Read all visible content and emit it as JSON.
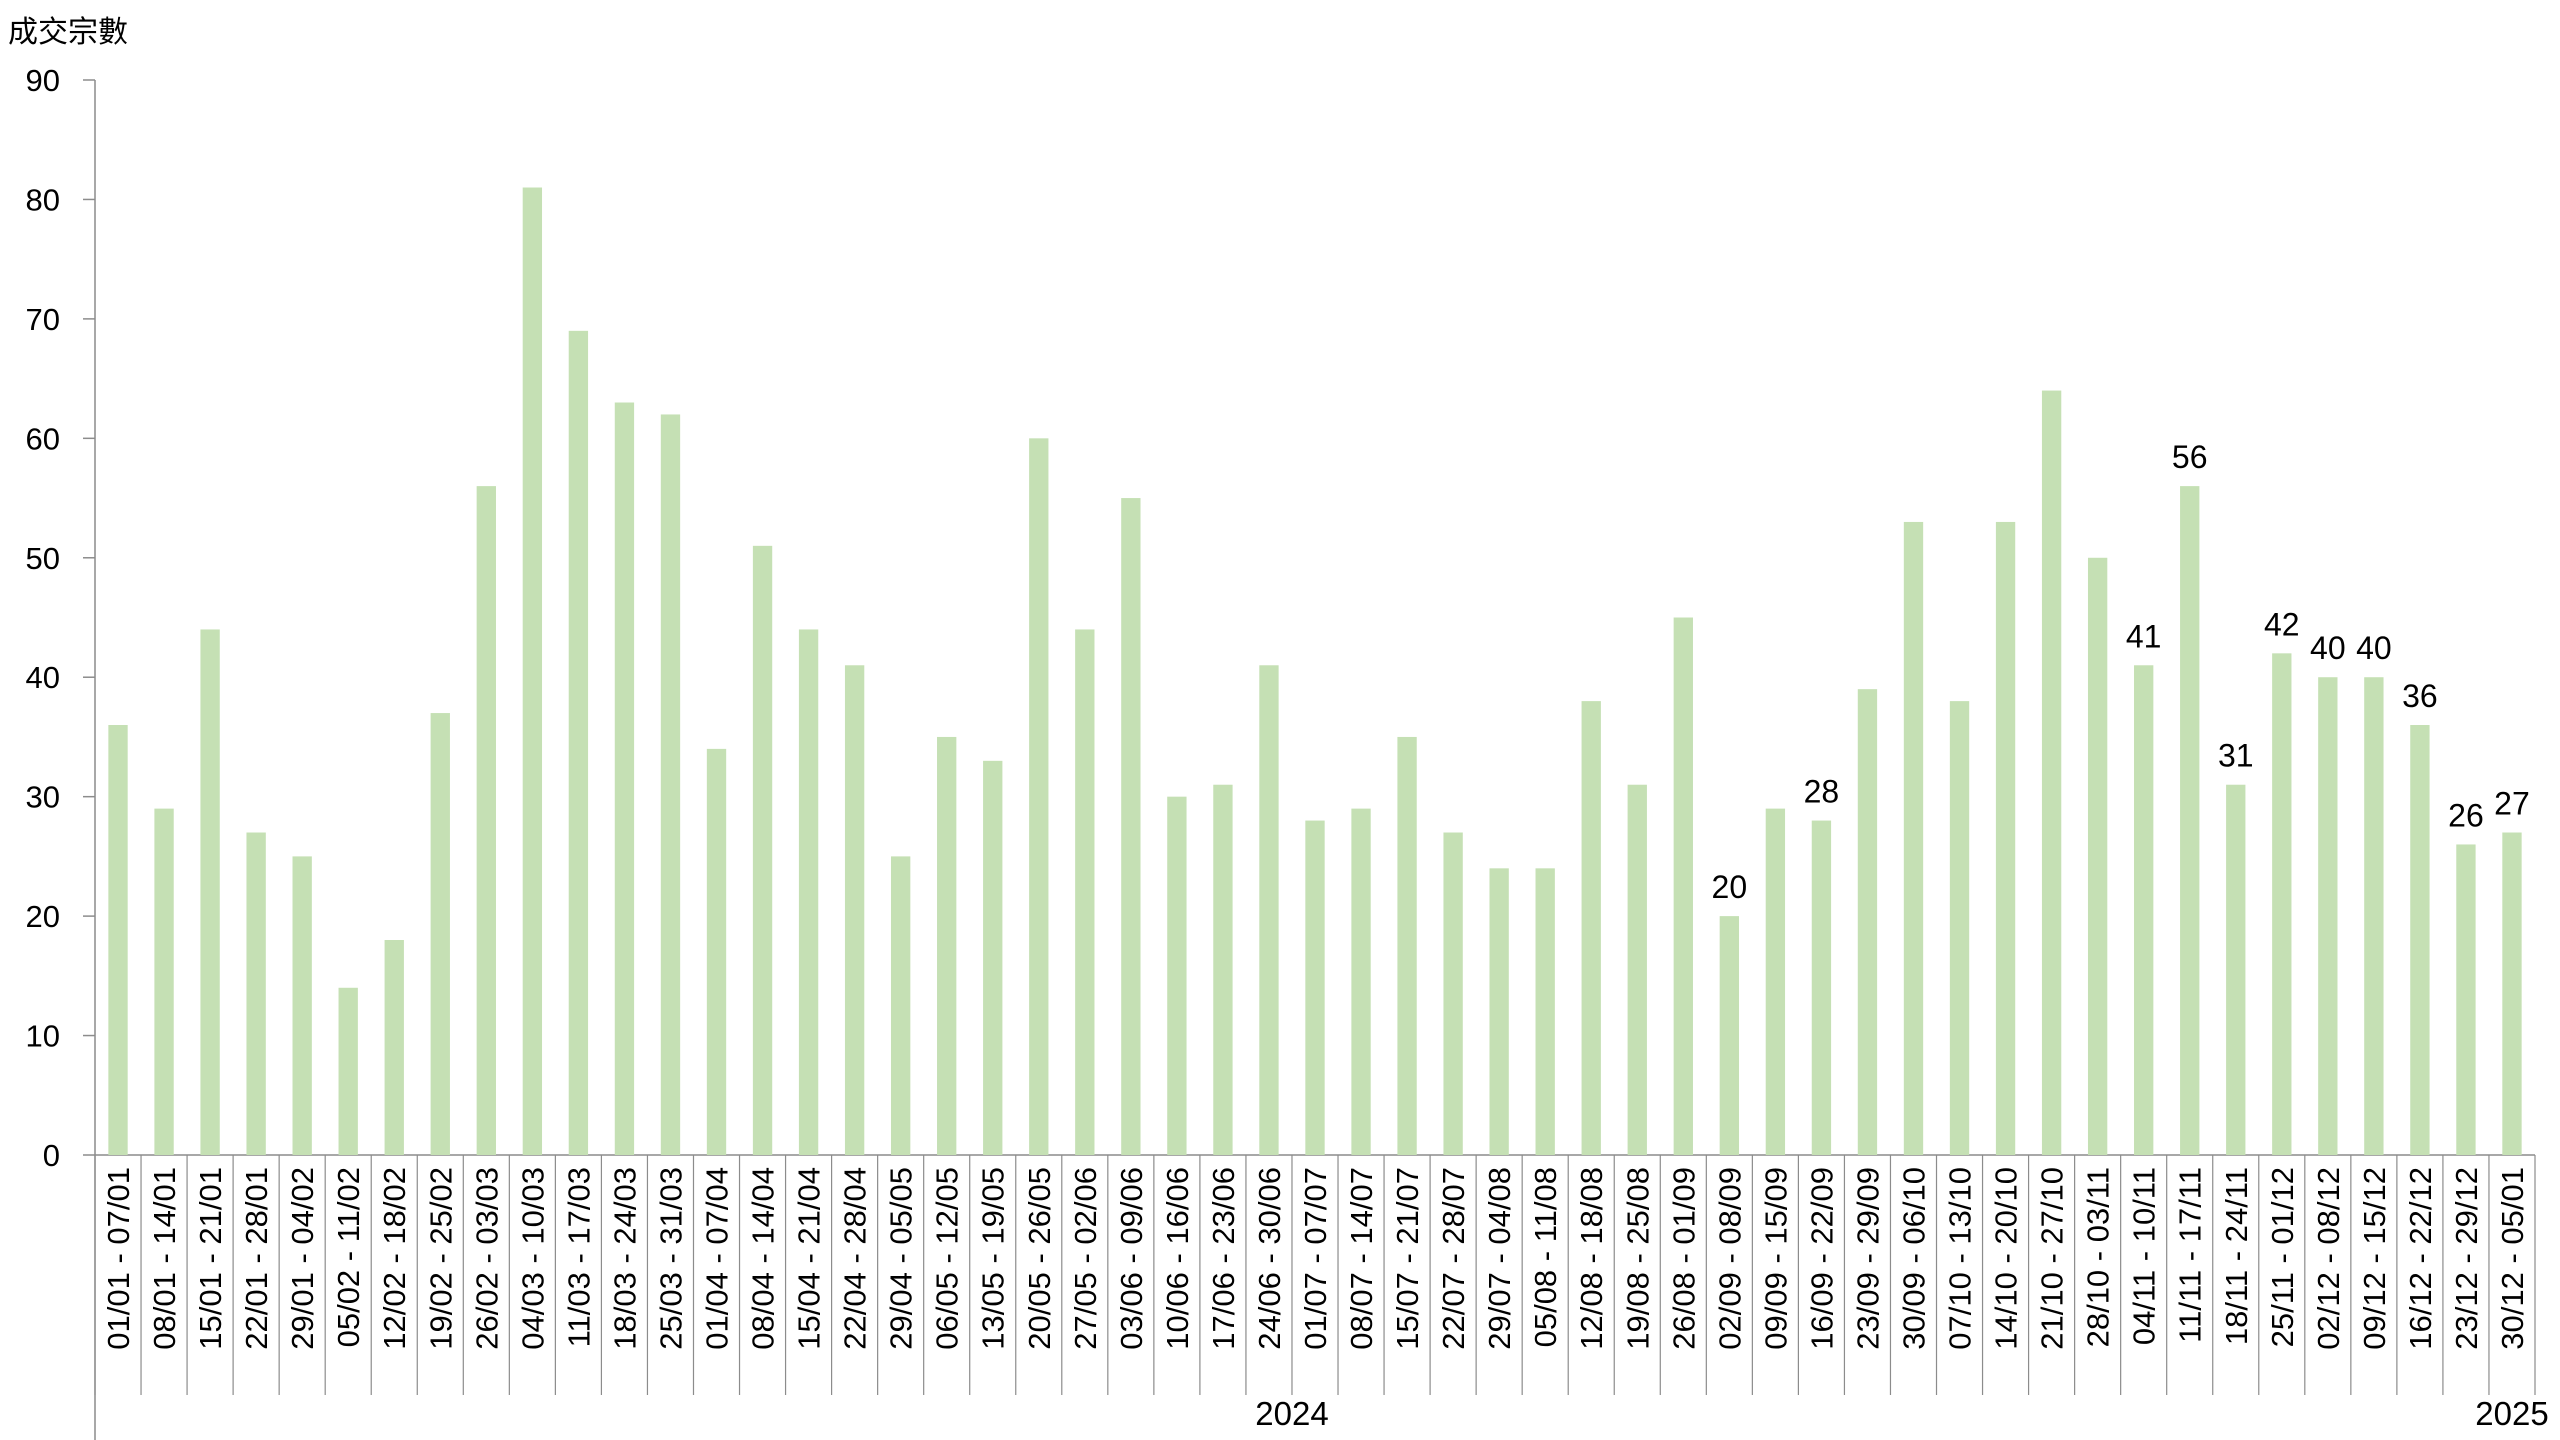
{
  "chart_data": {
    "type": "bar",
    "ylabel": "成交宗數",
    "ylim": [
      0,
      90
    ],
    "yticks": [
      "0",
      "10",
      "20",
      "30",
      "40",
      "50",
      "60",
      "70",
      "80",
      "90"
    ],
    "grid": false,
    "bar_color": "#c5e0b4",
    "categories": [
      "01/01 - 07/01",
      "08/01 - 14/01",
      "15/01 - 21/01",
      "22/01 - 28/01",
      "29/01 - 04/02",
      "05/02 - 11/02",
      "12/02 - 18/02",
      "19/02 - 25/02",
      "26/02 - 03/03",
      "04/03 - 10/03",
      "11/03 - 17/03",
      "18/03 - 24/03",
      "25/03 - 31/03",
      "01/04 - 07/04",
      "08/04 - 14/04",
      "15/04 - 21/04",
      "22/04 - 28/04",
      "29/04 - 05/05",
      "06/05 - 12/05",
      "13/05 - 19/05",
      "20/05 - 26/05",
      "27/05 - 02/06",
      "03/06 - 09/06",
      "10/06 - 16/06",
      "17/06 - 23/06",
      "24/06 - 30/06",
      "01/07 - 07/07",
      "08/07 - 14/07",
      "15/07 - 21/07",
      "22/07 - 28/07",
      "29/07 - 04/08",
      "05/08 - 11/08",
      "12/08 - 18/08",
      "19/08 - 25/08",
      "26/08 - 01/09",
      "02/09 - 08/09",
      "09/09 - 15/09",
      "16/09 - 22/09",
      "23/09 - 29/09",
      "30/09 - 06/10",
      "07/10 - 13/10",
      "14/10 - 20/10",
      "21/10 - 27/10",
      "28/10 - 03/11",
      "04/11 - 10/11",
      "11/11 - 17/11",
      "18/11 - 24/11",
      "25/11 - 01/12",
      "02/12 - 08/12",
      "09/12 - 15/12",
      "16/12 - 22/12",
      "23/12 - 29/12",
      "30/12 - 05/01"
    ],
    "values": [
      36,
      29,
      44,
      27,
      25,
      14,
      18,
      37,
      56,
      81,
      69,
      63,
      62,
      34,
      51,
      44,
      41,
      25,
      35,
      33,
      60,
      44,
      55,
      30,
      31,
      41,
      28,
      29,
      35,
      27,
      24,
      24,
      38,
      31,
      45,
      20,
      29,
      28,
      39,
      53,
      38,
      53,
      64,
      50,
      41,
      56,
      31,
      42,
      40,
      40,
      36,
      26,
      27
    ],
    "data_labels": [
      null,
      null,
      null,
      null,
      null,
      null,
      null,
      null,
      null,
      null,
      null,
      null,
      null,
      null,
      null,
      null,
      null,
      null,
      null,
      null,
      null,
      null,
      null,
      null,
      null,
      null,
      null,
      null,
      null,
      null,
      null,
      null,
      null,
      null,
      null,
      "20",
      null,
      "28",
      null,
      null,
      null,
      null,
      null,
      null,
      "41",
      "56",
      "31",
      "42",
      "40",
      "40",
      "36",
      "26",
      "27"
    ],
    "groups": [
      {
        "label": "2024",
        "start": 0,
        "end": 51
      },
      {
        "label": "2025",
        "start": 52,
        "end": 52
      }
    ]
  }
}
